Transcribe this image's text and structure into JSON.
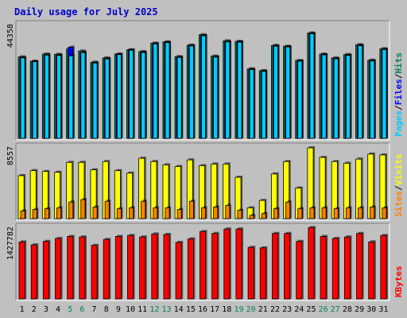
{
  "chart_data": {
    "type": "bar",
    "title": "Daily usage for July 2025",
    "categories": [
      "1",
      "2",
      "3",
      "4",
      "5",
      "6",
      "7",
      "8",
      "9",
      "10",
      "11",
      "12",
      "13",
      "14",
      "15",
      "16",
      "17",
      "18",
      "19",
      "20",
      "21",
      "22",
      "23",
      "24",
      "25",
      "26",
      "27",
      "28",
      "29",
      "30",
      "31"
    ],
    "weekend_days": [
      "5",
      "6",
      "12",
      "13",
      "19",
      "20",
      "26",
      "27"
    ],
    "panels": [
      {
        "name": "requests",
        "max_label": "44358",
        "ylim": [
          0,
          44358
        ],
        "series": [
          {
            "name": "Hits",
            "color": "#00805c",
            "values": [
              32000,
              30300,
              33100,
              33000,
              35100,
              34300,
              29900,
              31600,
              33100,
              34800,
              34100,
              37400,
              37900,
              32100,
              36600,
              40700,
              32300,
              38300,
              38100,
              27300,
              26600,
              36500,
              36200,
              30600,
              41400,
              33100,
              31600,
              32900,
              36800,
              30700,
              35200
            ]
          },
          {
            "name": "Files",
            "color": "#0000ff",
            "values": [
              31600,
              30100,
              32700,
              32600,
              35800,
              33700,
              29600,
              31200,
              32900,
              34600,
              33700,
              37100,
              37600,
              31800,
              36300,
              40300,
              31900,
              37900,
              37800,
              27000,
              26300,
              36200,
              35900,
              30300,
              41100,
              32800,
              31200,
              32600,
              36400,
              30400,
              34900
            ]
          },
          {
            "name": "Pages",
            "color": "#00ccff",
            "values": [
              31600,
              30100,
              32700,
              32600,
              32400,
              33700,
              29600,
              31200,
              32900,
              34600,
              33700,
              37100,
              37600,
              31800,
              36300,
              40300,
              31900,
              37900,
              37800,
              27000,
              26300,
              36200,
              35900,
              30300,
              41100,
              32800,
              31200,
              32600,
              36400,
              30400,
              34900
            ]
          }
        ]
      },
      {
        "name": "visits",
        "max_label": "8557",
        "ylim": [
          0,
          8557
        ],
        "series": [
          {
            "name": "Visits",
            "color": "#ffff00",
            "values": [
              5200,
              5800,
              5700,
              5600,
              6800,
              6800,
              5900,
              6900,
              5800,
              5500,
              7300,
              6900,
              6500,
              6300,
              7100,
              6400,
              6600,
              6600,
              5000,
              1300,
              2200,
              5400,
              6900,
              3700,
              8557,
              7400,
              6900,
              6700,
              7200,
              7800,
              7700
            ]
          },
          {
            "name": "Sites",
            "color": "#ff8000",
            "values": [
              930,
              1100,
              1200,
              1300,
              2000,
              2300,
              1400,
              2100,
              1200,
              1300,
              2100,
              1300,
              1300,
              1100,
              2100,
              1300,
              1400,
              1600,
              1000,
              380,
              600,
              1200,
              2000,
              1200,
              1300,
              1300,
              1200,
              1300,
              1300,
              1400,
              1300
            ]
          }
        ]
      },
      {
        "name": "kbytes",
        "max_label": "1427782",
        "ylim": [
          0,
          1427782
        ],
        "series": [
          {
            "name": "KBytes",
            "color": "#ff0000",
            "values": [
              1150000,
              1090000,
              1160000,
              1220000,
              1260000,
              1250000,
              1080000,
              1200000,
              1260000,
              1280000,
              1250000,
              1310000,
              1300000,
              1140000,
              1210000,
              1360000,
              1320000,
              1410000,
              1410000,
              1040000,
              1030000,
              1320000,
              1320000,
              1160000,
              1440000,
              1260000,
              1220000,
              1250000,
              1320000,
              1150000,
              1280000
            ]
          }
        ]
      }
    ],
    "legend_sep": "/"
  }
}
